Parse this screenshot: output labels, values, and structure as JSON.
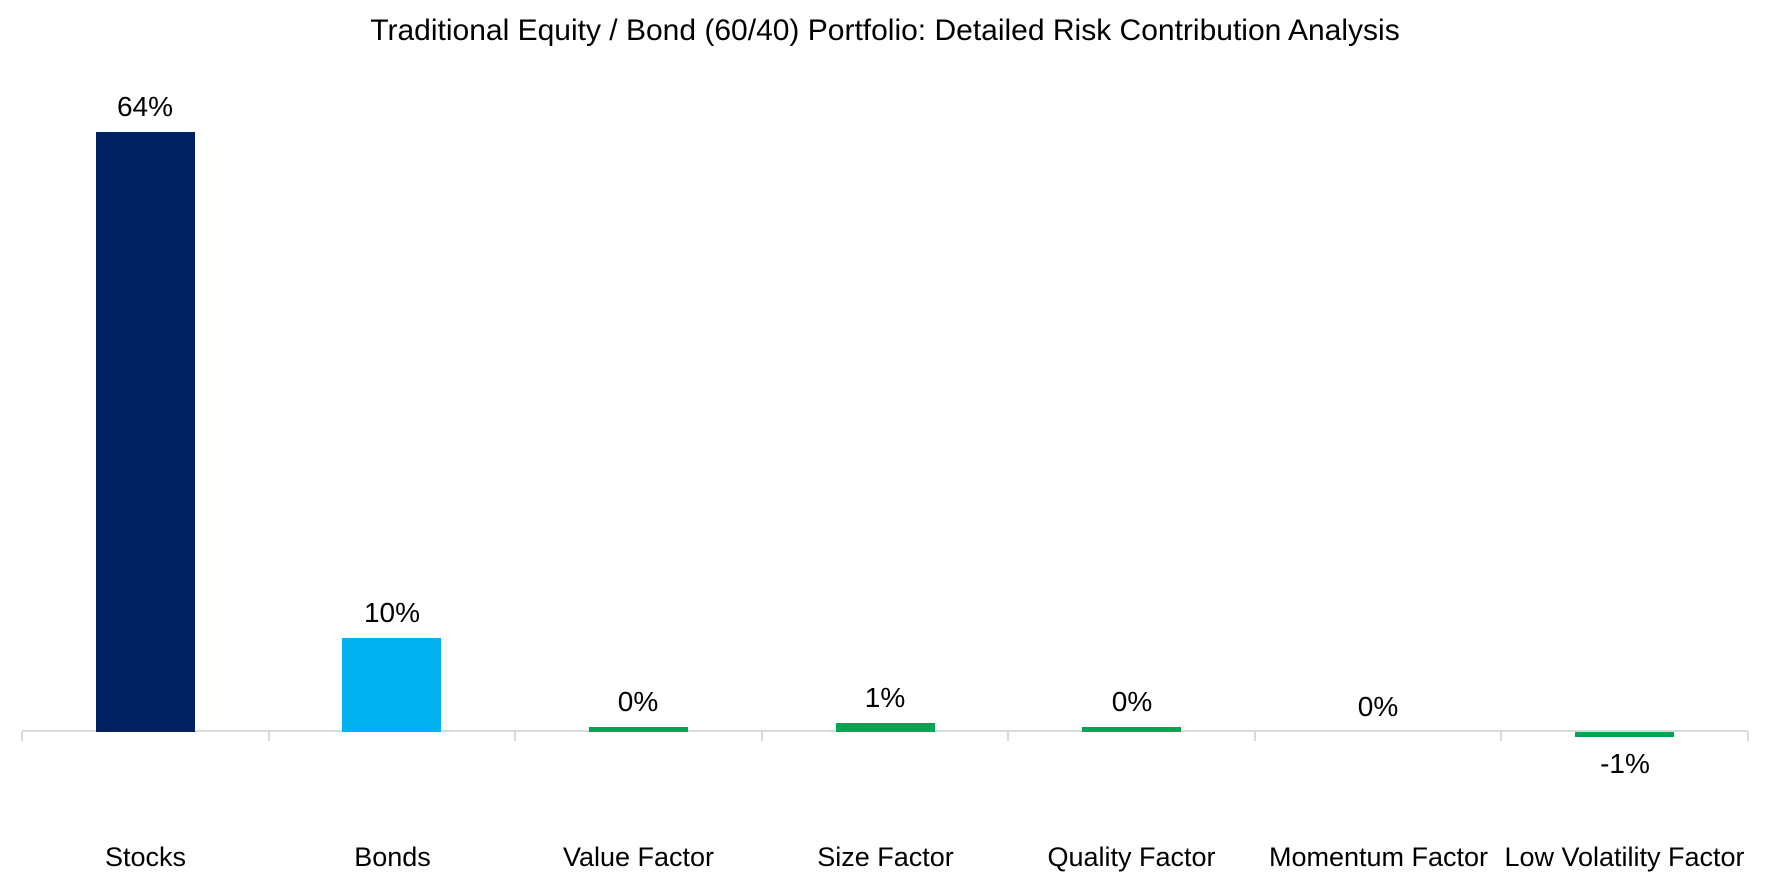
{
  "chart_data": {
    "type": "bar",
    "title": "Traditional Equity / Bond (60/40) Portfolio: Detailed Risk Contribution Analysis",
    "categories": [
      "Stocks",
      "Bonds",
      "Value Factor",
      "Size Factor",
      "Quality Factor",
      "Momentum Factor",
      "Low Volatility Factor"
    ],
    "values": [
      64,
      10,
      0,
      1,
      0,
      0,
      -1
    ],
    "value_labels": [
      "64%",
      "10%",
      "0%",
      "1%",
      "0%",
      "0%",
      "-1%"
    ],
    "values_exact_pct": [
      64,
      10,
      0.5,
      1,
      0.5,
      0,
      -0.5
    ],
    "bar_colors": [
      "#002060",
      "#00B0F0",
      "#00A651",
      "#00A651",
      "#00A651",
      "#00A651",
      "#00A651"
    ],
    "xlabel": "",
    "ylabel": "",
    "ylim": [
      -1,
      70
    ],
    "grid": false,
    "legend": false,
    "axis_color": "#D9D9D9",
    "text_color": "#000000",
    "background_color": "#FFFFFF"
  }
}
